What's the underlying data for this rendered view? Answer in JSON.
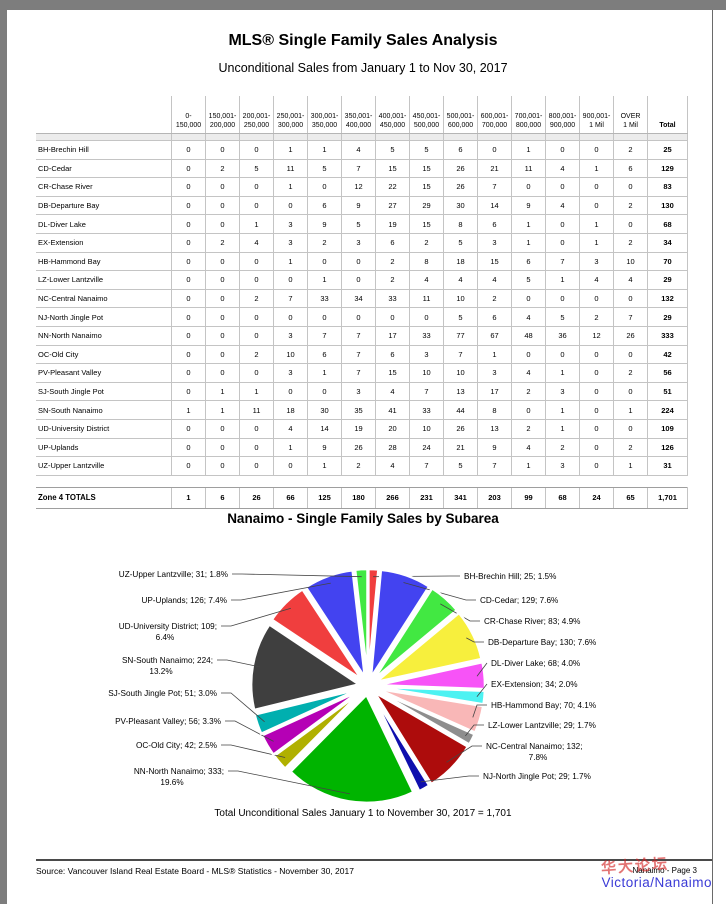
{
  "page": {
    "title": "MLS® Single Family Sales Analysis",
    "subtitle": "Unconditional Sales from January 1 to Nov 30, 2017"
  },
  "table": {
    "headers": [
      [
        "0-",
        "150,000"
      ],
      [
        "150,001-",
        "200,000"
      ],
      [
        "200,001-",
        "250,000"
      ],
      [
        "250,001-",
        "300,000"
      ],
      [
        "300,001-",
        "350,000"
      ],
      [
        "350,001-",
        "400,000"
      ],
      [
        "400,001-",
        "450,000"
      ],
      [
        "450,001-",
        "500,000"
      ],
      [
        "500,001-",
        "600,000"
      ],
      [
        "600,001-",
        "700,000"
      ],
      [
        "700,001-",
        "800,000"
      ],
      [
        "800,001-",
        "900,000"
      ],
      [
        "900,001-",
        "1 Mil"
      ],
      [
        "OVER",
        "1 Mil"
      ]
    ],
    "total_header": "Total",
    "rows": [
      {
        "label": "BH-Brechin Hill",
        "values": [
          0,
          0,
          0,
          1,
          1,
          4,
          5,
          5,
          6,
          0,
          1,
          0,
          0,
          2
        ],
        "total": 25
      },
      {
        "label": "CD-Cedar",
        "values": [
          0,
          2,
          5,
          11,
          5,
          7,
          15,
          15,
          26,
          21,
          11,
          4,
          1,
          6
        ],
        "total": 129
      },
      {
        "label": "CR-Chase River",
        "values": [
          0,
          0,
          0,
          1,
          0,
          12,
          22,
          15,
          26,
          7,
          0,
          0,
          0,
          0
        ],
        "total": 83
      },
      {
        "label": "DB-Departure Bay",
        "values": [
          0,
          0,
          0,
          0,
          6,
          9,
          27,
          29,
          30,
          14,
          9,
          4,
          0,
          2
        ],
        "total": 130
      },
      {
        "label": "DL-Diver Lake",
        "values": [
          0,
          0,
          1,
          3,
          9,
          5,
          19,
          15,
          8,
          6,
          1,
          0,
          1,
          0
        ],
        "total": 68
      },
      {
        "label": "EX-Extension",
        "values": [
          0,
          2,
          4,
          3,
          2,
          3,
          6,
          2,
          5,
          3,
          1,
          0,
          1,
          2
        ],
        "total": 34
      },
      {
        "label": "HB-Hammond Bay",
        "values": [
          0,
          0,
          0,
          1,
          0,
          0,
          2,
          8,
          18,
          15,
          6,
          7,
          3,
          10
        ],
        "total": 70
      },
      {
        "label": "LZ-Lower Lantzville",
        "values": [
          0,
          0,
          0,
          0,
          1,
          0,
          2,
          4,
          4,
          4,
          5,
          1,
          4,
          4
        ],
        "total": 29
      },
      {
        "label": "NC-Central Nanaimo",
        "values": [
          0,
          0,
          2,
          7,
          33,
          34,
          33,
          11,
          10,
          2,
          0,
          0,
          0,
          0
        ],
        "total": 132
      },
      {
        "label": "NJ-North Jingle Pot",
        "values": [
          0,
          0,
          0,
          0,
          0,
          0,
          0,
          0,
          5,
          6,
          4,
          5,
          2,
          7
        ],
        "total": 29
      },
      {
        "label": "NN-North Nanaimo",
        "values": [
          0,
          0,
          0,
          3,
          7,
          7,
          17,
          33,
          77,
          67,
          48,
          36,
          12,
          26
        ],
        "total": 333
      },
      {
        "label": "OC-Old City",
        "values": [
          0,
          0,
          2,
          10,
          6,
          7,
          6,
          3,
          7,
          1,
          0,
          0,
          0,
          0
        ],
        "total": 42
      },
      {
        "label": "PV-Pleasant Valley",
        "values": [
          0,
          0,
          0,
          3,
          1,
          7,
          15,
          10,
          10,
          3,
          4,
          1,
          0,
          2
        ],
        "total": 56
      },
      {
        "label": "SJ-South Jingle Pot",
        "values": [
          0,
          1,
          1,
          0,
          0,
          3,
          4,
          7,
          13,
          17,
          2,
          3,
          0,
          0
        ],
        "total": 51
      },
      {
        "label": "SN-South Nanaimo",
        "values": [
          1,
          1,
          11,
          18,
          30,
          35,
          41,
          33,
          44,
          8,
          0,
          1,
          0,
          1
        ],
        "total": 224
      },
      {
        "label": "UD-University District",
        "values": [
          0,
          0,
          0,
          4,
          14,
          19,
          20,
          10,
          26,
          13,
          2,
          1,
          0,
          0
        ],
        "total": 109
      },
      {
        "label": "UP-Uplands",
        "values": [
          0,
          0,
          0,
          1,
          9,
          26,
          28,
          24,
          21,
          9,
          4,
          2,
          0,
          2
        ],
        "total": 126
      },
      {
        "label": "UZ-Upper Lantzville",
        "values": [
          0,
          0,
          0,
          0,
          1,
          2,
          4,
          7,
          5,
          7,
          1,
          3,
          0,
          1
        ],
        "total": 31
      }
    ],
    "totals_label": "Zone 4 TOTALS",
    "totals_values": [
      1,
      6,
      26,
      66,
      125,
      180,
      266,
      231,
      341,
      203,
      99,
      68,
      24,
      65
    ],
    "totals_total": "1,701"
  },
  "chart_data": {
    "type": "pie",
    "title": "Nanaimo - Single Family Sales by Subarea",
    "label_format": "name; value; pct%",
    "legend_position": "none",
    "total": 1701,
    "slices": [
      {
        "name": "BH-Brechin Hill",
        "value": 25,
        "pct": "1.5",
        "color": "#f03e3e"
      },
      {
        "name": "CD-Cedar",
        "value": 129,
        "pct": "7.6",
        "color": "#4343f0"
      },
      {
        "name": "CR-Chase River",
        "value": 83,
        "pct": "4.9",
        "color": "#42e842"
      },
      {
        "name": "DB-Departure Bay",
        "value": 130,
        "pct": "7.6",
        "color": "#f7ef3d"
      },
      {
        "name": "DL-Diver Lake",
        "value": 68,
        "pct": "4.0",
        "color": "#f753f7"
      },
      {
        "name": "EX-Extension",
        "value": 34,
        "pct": "2.0",
        "color": "#4df2f2"
      },
      {
        "name": "HB-Hammond Bay",
        "value": 70,
        "pct": "4.1",
        "color": "#f9b7b7"
      },
      {
        "name": "LZ-Lower Lantzville",
        "value": 29,
        "pct": "1.7",
        "color": "#8e8e8e"
      },
      {
        "name": "NC-Central Nanaimo",
        "value": 132,
        "pct": "7.8",
        "color": "#ad0c0c"
      },
      {
        "name": "NJ-North Jingle Pot",
        "value": 29,
        "pct": "1.7",
        "color": "#0f0fad"
      },
      {
        "name": "NN-North Nanaimo",
        "value": 333,
        "pct": "19.6",
        "color": "#00b400"
      },
      {
        "name": "OC-Old City",
        "value": 42,
        "pct": "2.5",
        "color": "#b0b000"
      },
      {
        "name": "PV-Pleasant Valley",
        "value": 56,
        "pct": "3.3",
        "color": "#b500b5"
      },
      {
        "name": "SJ-South Jingle Pot",
        "value": 51,
        "pct": "3.0",
        "color": "#00afaf"
      },
      {
        "name": "SN-South Nanaimo",
        "value": 224,
        "pct": "13.2",
        "color": "#3f3f3f"
      },
      {
        "name": "UD-University District",
        "value": 109,
        "pct": "6.4",
        "color": "#f03e3e"
      },
      {
        "name": "UP-Uplands",
        "value": 126,
        "pct": "7.4",
        "color": "#4343f0"
      },
      {
        "name": "UZ-Upper Lantzville",
        "value": 31,
        "pct": "1.8",
        "color": "#42e842"
      }
    ],
    "footnote": "Total Unconditional Sales January 1 to November 30, 2017 = 1,701"
  },
  "footer": {
    "source": "Source: Vancouver Island Real Estate Board - MLS® Statistics - November 30, 2017",
    "page_label": "Nanaimo - Page 3",
    "watermark": "华大论坛",
    "brand": "Victoria/Nanaimo"
  }
}
